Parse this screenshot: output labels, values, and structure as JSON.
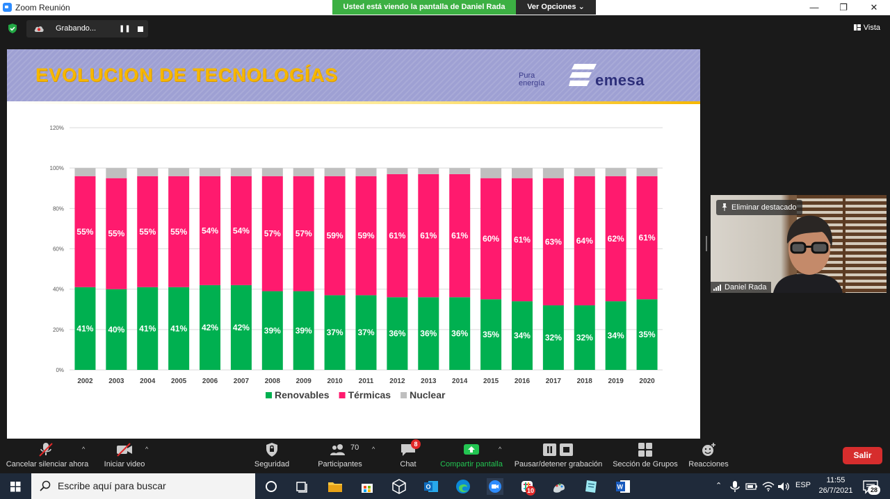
{
  "window": {
    "title": "Zoom Reunión",
    "share_banner": "Usted está viendo la pantalla de Daniel Rada",
    "view_options": "Ver Opciones",
    "minimize": "—",
    "restore": "❐",
    "close": "✕"
  },
  "topbar": {
    "recording_label": "Grabando...",
    "view_label": "Vista"
  },
  "slide": {
    "title": "EVOLUCION DE TECNOLOGÍAS",
    "brand_tagline_1": "Pura",
    "brand_tagline_2": "energía",
    "brand_name": "emesa"
  },
  "chart_data": {
    "type": "bar",
    "stacked": true,
    "categories": [
      "2002",
      "2003",
      "2004",
      "2005",
      "2006",
      "2007",
      "2008",
      "2009",
      "2010",
      "2011",
      "2012",
      "2013",
      "2014",
      "2015",
      "2016",
      "2017",
      "2018",
      "2019",
      "2020"
    ],
    "series": [
      {
        "name": "Renovables",
        "color": "#00b050",
        "values": [
          41,
          40,
          41,
          41,
          42,
          42,
          39,
          39,
          37,
          37,
          36,
          36,
          36,
          35,
          34,
          32,
          32,
          34,
          35
        ],
        "labels": [
          "41%",
          "40%",
          "41%",
          "41%",
          "42%",
          "42%",
          "39%",
          "39%",
          "37%",
          "37%",
          "36%",
          "36%",
          "36%",
          "35%",
          "34%",
          "32%",
          "32%",
          "34%",
          "35%"
        ]
      },
      {
        "name": "Térmicas",
        "color": "#ff1a6e",
        "values": [
          55,
          55,
          55,
          55,
          54,
          54,
          57,
          57,
          59,
          59,
          61,
          61,
          61,
          60,
          61,
          63,
          64,
          62,
          61
        ],
        "labels": [
          "55%",
          "55%",
          "55%",
          "55%",
          "54%",
          "54%",
          "57%",
          "57%",
          "59%",
          "59%",
          "61%",
          "61%",
          "61%",
          "60%",
          "61%",
          "63%",
          "64%",
          "62%",
          "61%"
        ]
      },
      {
        "name": "Nuclear",
        "color": "#bfbfbf",
        "values": [
          4,
          5,
          4,
          4,
          4,
          4,
          4,
          4,
          4,
          4,
          3,
          3,
          3,
          5,
          5,
          5,
          4,
          4,
          4
        ]
      }
    ],
    "y_ticks": [
      "0%",
      "20%",
      "40%",
      "60%",
      "80%",
      "100%",
      "120%"
    ],
    "ylim": [
      0,
      120
    ],
    "grid": true,
    "legend": "bottom-center"
  },
  "video": {
    "pin_label": "Eliminar destacado",
    "participant_name": "Daniel Rada"
  },
  "toolbar": {
    "mute_label": "Cancelar silenciar ahora",
    "video_label": "Iniciar video",
    "security_label": "Seguridad",
    "participants_label": "Participantes",
    "participants_count": "70",
    "chat_label": "Chat",
    "chat_badge": "8",
    "share_label": "Compartir pantalla",
    "recording_label": "Pausar/detener grabación",
    "groups_label": "Sección de Grupos",
    "reactions_label": "Reacciones",
    "leave_label": "Salir",
    "caret": "^"
  },
  "taskbar": {
    "search_placeholder": "Escribe aquí para buscar",
    "slack_badge": "10",
    "language": "ESP",
    "time": "11:55",
    "date": "26/7/2021",
    "notification_count": "28"
  },
  "colors": {
    "zoom_green": "#3cb043",
    "leave_red": "#d62d2d",
    "title_yellow": "#f6b700",
    "header_lavender": "#9ea0d3"
  }
}
